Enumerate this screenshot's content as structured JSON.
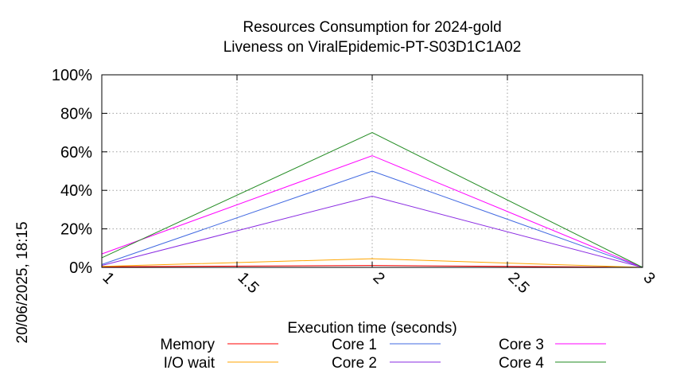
{
  "chart_data": {
    "type": "line",
    "title_line1": "Resources Consumption for 2024-gold",
    "title_line2": "Liveness on ViralEpidemic-PT-S03D1C1A02",
    "xlabel": "Execution time (seconds)",
    "ylabel": "",
    "timestamp": "20/06/2025, 18:15",
    "xlim": [
      1,
      3
    ],
    "ylim": [
      0,
      100
    ],
    "x_ticks": [
      1,
      1.5,
      2,
      2.5,
      3
    ],
    "x_tick_labels": [
      "1",
      "1.5",
      "2",
      "2.5",
      "3"
    ],
    "y_ticks": [
      0,
      20,
      40,
      60,
      80,
      100
    ],
    "y_tick_labels": [
      "0%",
      "20%",
      "40%",
      "60%",
      "80%",
      "100%"
    ],
    "grid": true,
    "legend_position": "bottom",
    "x": [
      1,
      2,
      3
    ],
    "series": [
      {
        "name": "Memory",
        "color": "#ff0000",
        "values": [
          0.3,
          1.0,
          0
        ]
      },
      {
        "name": "I/O wait",
        "color": "#ffa500",
        "values": [
          0.5,
          4.5,
          0
        ]
      },
      {
        "name": "Core 1",
        "color": "#4169e1",
        "values": [
          1.5,
          50,
          0
        ]
      },
      {
        "name": "Core 2",
        "color": "#8a2be2",
        "values": [
          1.0,
          37,
          0
        ]
      },
      {
        "name": "Core 3",
        "color": "#ff00ff",
        "values": [
          7.0,
          58,
          0
        ]
      },
      {
        "name": "Core 4",
        "color": "#228b22",
        "values": [
          5.0,
          70,
          0
        ]
      }
    ]
  }
}
